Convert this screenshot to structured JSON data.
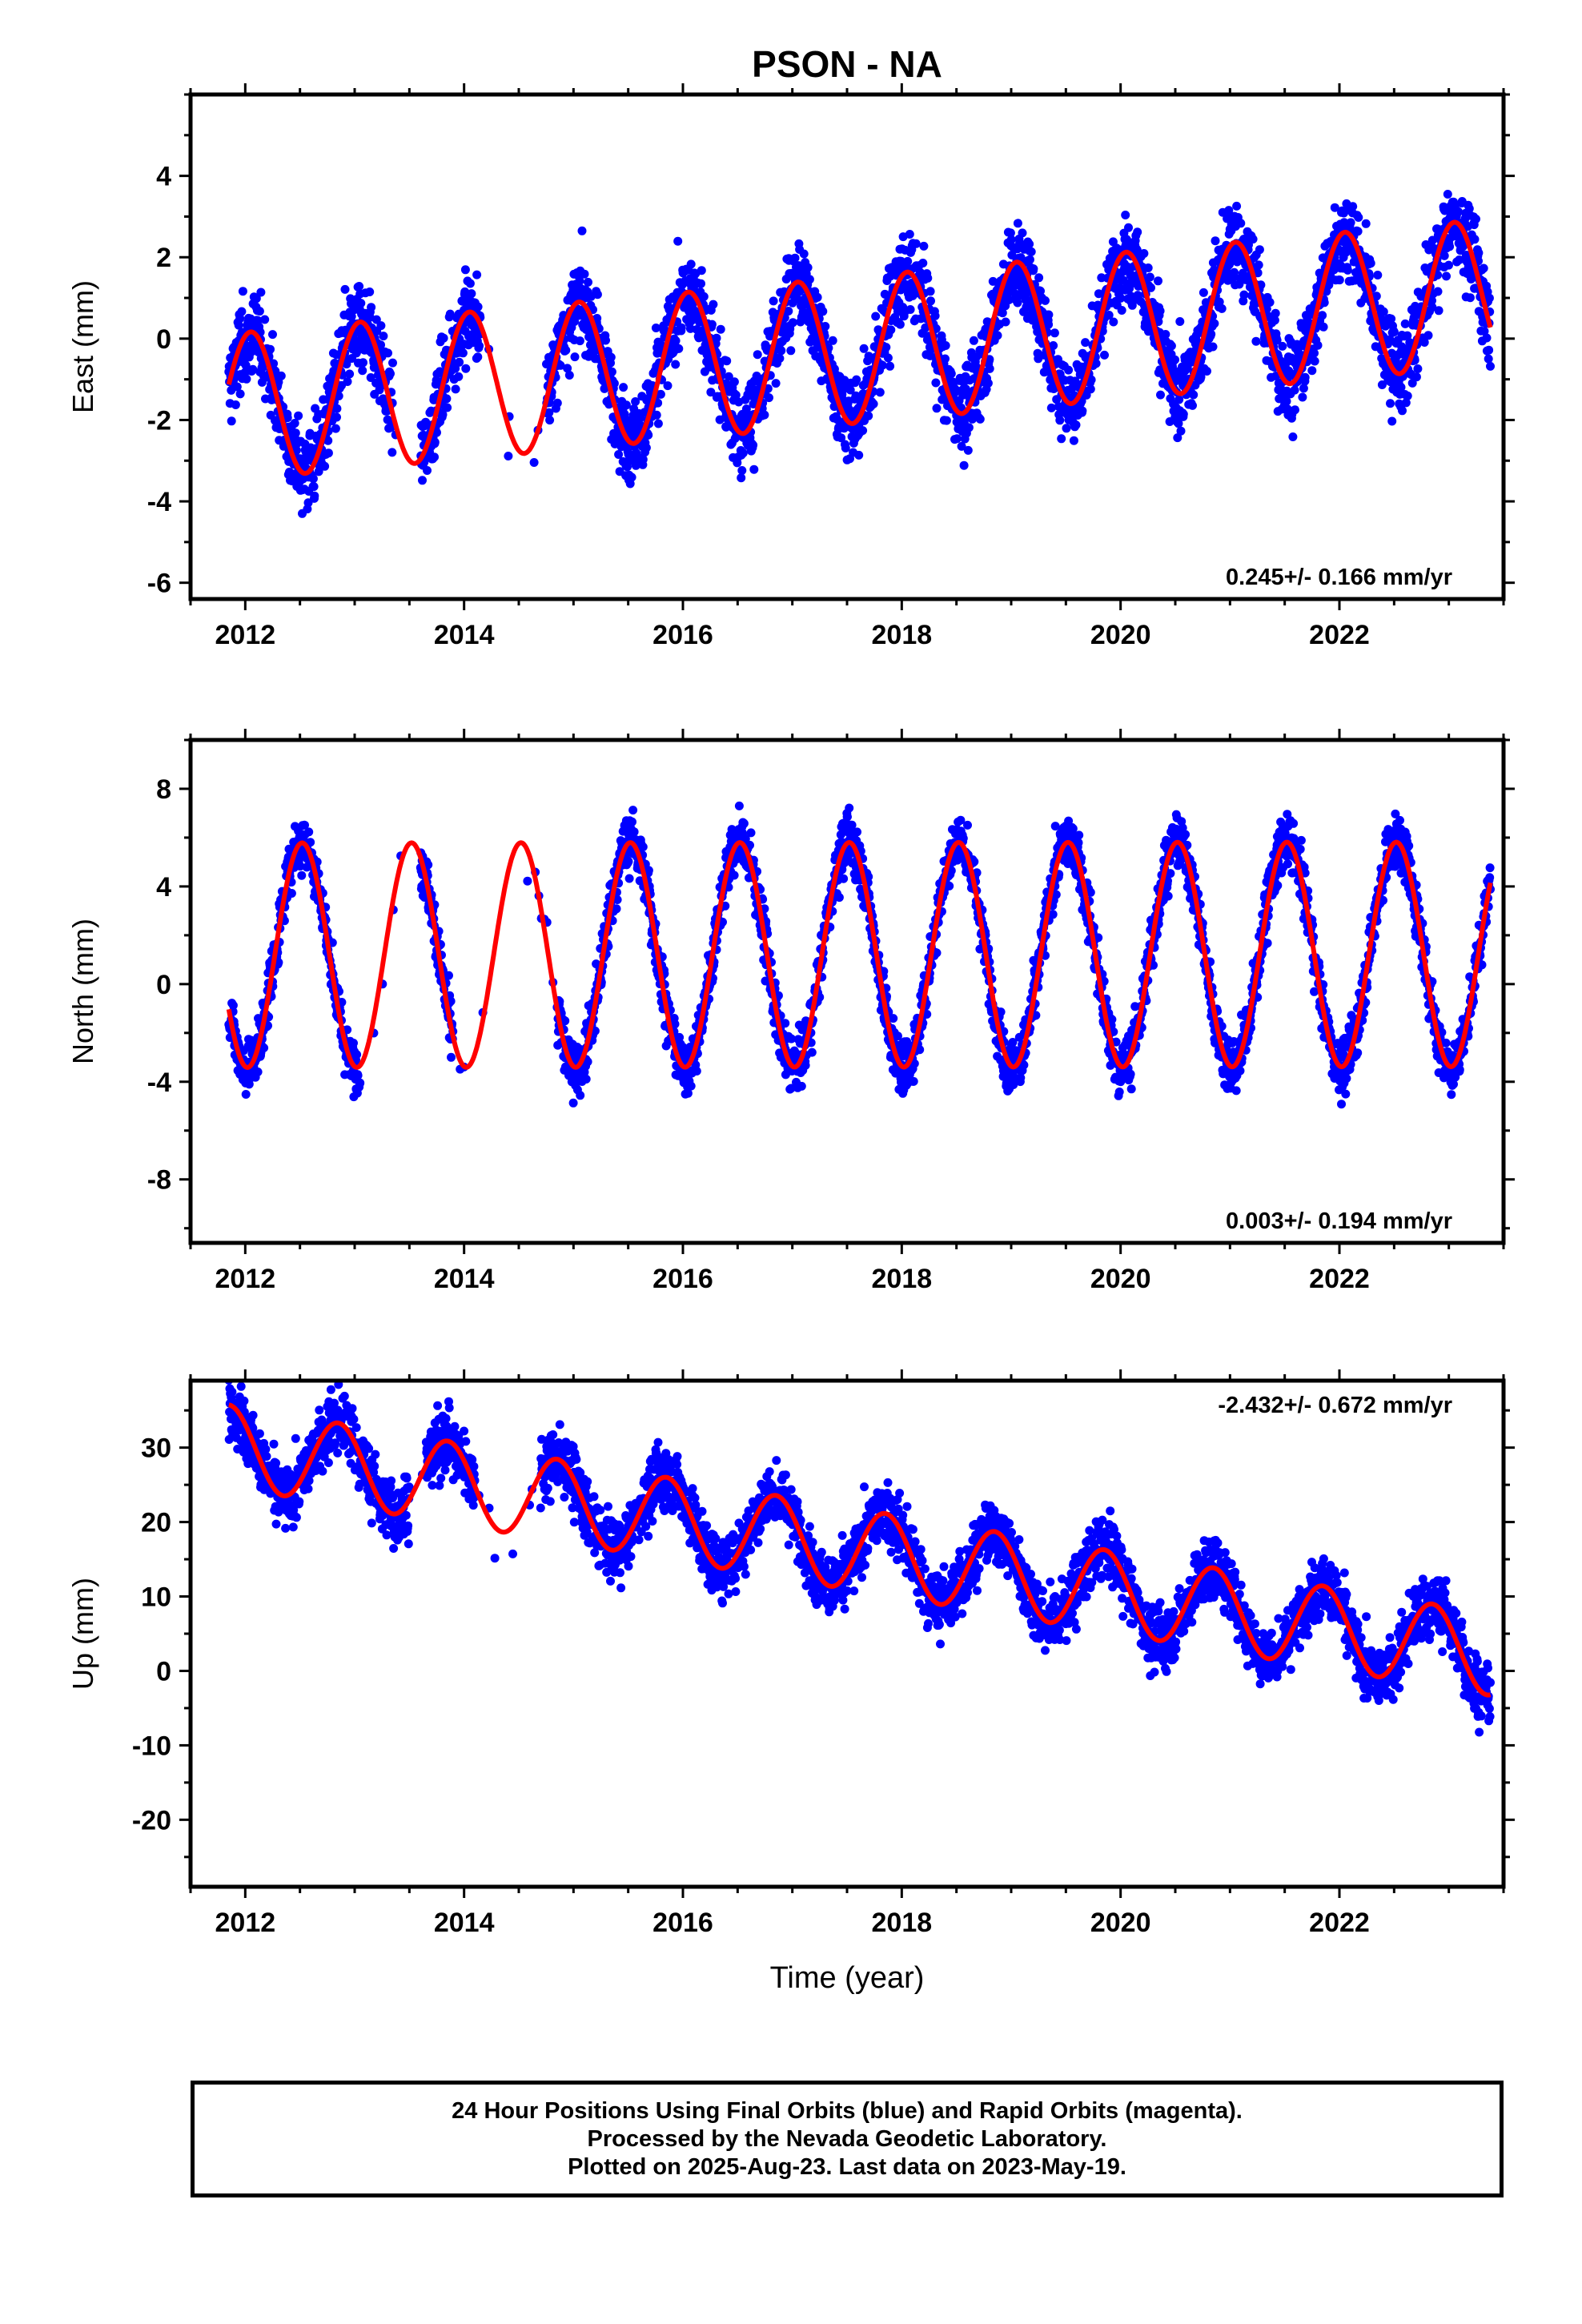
{
  "title": "PSON - NA",
  "colors": {
    "data": "#0000ff",
    "model": "#ff0000",
    "axes": "#000000"
  },
  "chart_data": [
    {
      "type": "scatter",
      "ylabel": "East (mm)",
      "xlabel": "",
      "xlim": [
        2011.5,
        2023.5
      ],
      "ylim": [
        -6.4,
        6.0
      ],
      "xticks": [
        2012,
        2014,
        2016,
        2018,
        2020,
        2022
      ],
      "yticks": [
        -6,
        -4,
        -2,
        0,
        2,
        4
      ],
      "rate_text": "0.245+/- 0.166 mm/yr",
      "rate_position": "bottom-right",
      "series": [
        {
          "kind": "points",
          "x_start": 2011.85,
          "x_end": 2023.38,
          "gaps": [
            [
              2013.35,
              2013.6
            ],
            [
              2014.15,
              2014.75
            ]
          ],
          "seasonal_amplitude": 1.7,
          "seasonal_peak": 0.05,
          "scatter": 1.0
        },
        {
          "kind": "model-curve",
          "x_start": 2011.85,
          "x_end": 2023.38,
          "offset": -0.3,
          "trend_mm_per_yr": 0.245,
          "amplitude": 1.8,
          "peak": 0.05
        }
      ]
    },
    {
      "type": "scatter",
      "ylabel": "North (mm)",
      "xlabel": "",
      "xlim": [
        2011.5,
        2023.5
      ],
      "ylim": [
        -10.6,
        10.0
      ],
      "xticks": [
        2012,
        2014,
        2016,
        2018,
        2020,
        2022
      ],
      "yticks": [
        -8,
        -4,
        0,
        4,
        8
      ],
      "rate_text": "0.003+/- 0.194 mm/yr",
      "rate_position": "bottom-right",
      "series": [
        {
          "kind": "points",
          "x_start": 2011.85,
          "x_end": 2023.38,
          "gaps": [
            [
              2013.05,
              2013.6
            ],
            [
              2013.9,
              2014.85
            ]
          ],
          "seasonal_amplitude": 4.6,
          "seasonal_peak": 0.52,
          "scatter": 1.1
        },
        {
          "kind": "model-curve",
          "x_start": 2011.85,
          "x_end": 2023.38,
          "offset": 1.2,
          "trend_mm_per_yr": 0.003,
          "amplitude": 4.6,
          "peak": 0.52
        }
      ]
    },
    {
      "type": "scatter",
      "ylabel": "Up (mm)",
      "xlabel": "Time (year)",
      "xlim": [
        2011.5,
        2023.5
      ],
      "ylim": [
        -29,
        39
      ],
      "xticks": [
        2012,
        2014,
        2016,
        2018,
        2020,
        2022
      ],
      "yticks": [
        -20,
        -10,
        0,
        10,
        20,
        30
      ],
      "rate_text": "-2.432+/- 0.672 mm/yr",
      "rate_position": "top-right",
      "series": [
        {
          "kind": "points",
          "x_start": 2011.85,
          "x_end": 2023.38,
          "gaps": [
            [
              2013.5,
              2013.65
            ],
            [
              2014.1,
              2014.7
            ]
          ],
          "seasonal_amplitude": 5.5,
          "seasonal_peak": 0.85,
          "scatter": 4.0
        },
        {
          "kind": "model-curve",
          "x_start": 2011.85,
          "x_end": 2023.38,
          "offset": 16.5,
          "trend_mm_per_yr": -2.432,
          "amplitude": 5.5,
          "peak": 0.85
        }
      ]
    }
  ],
  "footer": {
    "line1": "24 Hour Positions Using Final Orbits (blue) and Rapid Orbits (magenta).",
    "line2": "Processed by the Nevada Geodetic Laboratory.",
    "line3": "Plotted on 2025-Aug-23. Last data on 2023-May-19."
  }
}
